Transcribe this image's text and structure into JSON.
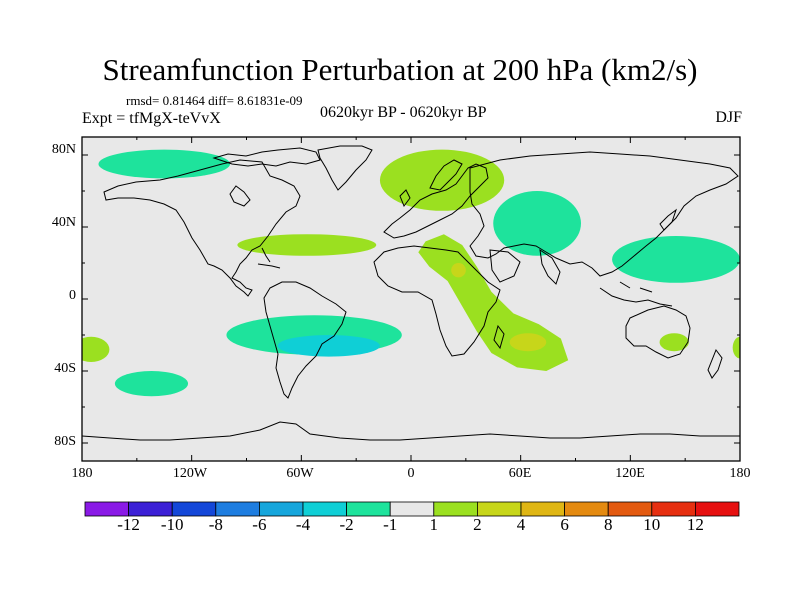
{
  "title": "Streamfunction Perturbation at 200 hPa (km2/s)",
  "stats": "rmsd= 0.81464  diff= 8.61831e-09",
  "experiment": "Expt = tfMgX-teVvX",
  "period": "0620kyr BP - 0620kyr BP",
  "season": "DJF",
  "y_axis_labels": [
    "80N",
    "40N",
    "0",
    "40S",
    "80S"
  ],
  "x_axis_labels": [
    "180",
    "120W",
    "60W",
    "0",
    "60E",
    "120E",
    "180"
  ],
  "colorbar": {
    "labels": [
      "-12",
      "-10",
      "-8",
      "-6",
      "-4",
      "-2",
      "-1",
      "1",
      "2",
      "4",
      "6",
      "8",
      "10",
      "12"
    ],
    "colors": [
      "#8a1ae6",
      "#3c20d6",
      "#1447d8",
      "#1e7de0",
      "#16a6dc",
      "#0fcfd6",
      "#1ee39c",
      "#e8e8e8",
      "#9be020",
      "#c7d61a",
      "#dfb614",
      "#e48a10",
      "#e35a10",
      "#e62f10",
      "#e61010"
    ]
  },
  "map_background": "#e8e8e8",
  "anomalies": [
    {
      "name": "north-pacific-arctic",
      "level": "-1",
      "lon": -135,
      "lat": 75,
      "rx": 36,
      "ry": 8
    },
    {
      "name": "europe-scandinavia",
      "level": "1",
      "lon": 17,
      "lat": 66,
      "rx": 34,
      "ry": 17
    },
    {
      "name": "central-asia",
      "level": "-1",
      "lon": 69,
      "lat": 42,
      "rx": 24,
      "ry": 18
    },
    {
      "name": "north-atlantic-subtropical",
      "level": "1",
      "lon": -57,
      "lat": 30,
      "rx": 38,
      "ry": 6
    },
    {
      "name": "west-pacific",
      "level": "-1",
      "lon": 145,
      "lat": 22,
      "rx": 35,
      "ry": 13
    },
    {
      "name": "south-atlantic",
      "level": "-1",
      "lon": -53,
      "lat": -20,
      "rx": 48,
      "ry": 11
    },
    {
      "name": "south-atlantic-core",
      "level": "-2",
      "lon": -45,
      "lat": -26,
      "rx": 28,
      "ry": 6
    },
    {
      "name": "south-pacific",
      "level": "-1",
      "lon": -142,
      "lat": -47,
      "rx": 20,
      "ry": 7
    },
    {
      "name": "east-pacific-west-edge",
      "level": "1",
      "lon": -175,
      "lat": -28,
      "rx": 10,
      "ry": 7
    },
    {
      "name": "east-edge",
      "level": "1",
      "lon": 180,
      "lat": -27,
      "rx": 4,
      "ry": 6
    },
    {
      "name": "australia-east",
      "level": "1",
      "lon": 144,
      "lat": -24,
      "rx": 8,
      "ry": 5
    }
  ],
  "africa_band_level": "1",
  "africa_band_core_level": "2"
}
